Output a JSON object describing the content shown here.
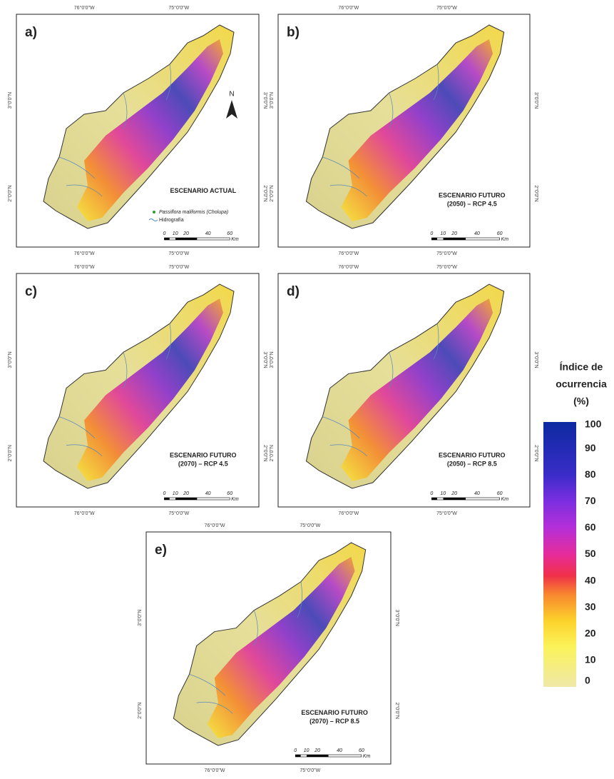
{
  "panels": [
    {
      "label": "a)",
      "scenario": [
        "ESCENARIO ACTUAL"
      ],
      "north": "N",
      "legend": [
        "Passiflora maliformis (Cholupa)",
        "Hidrografía"
      ]
    },
    {
      "label": "b)",
      "scenario": [
        "ESCENARIO FUTURO",
        "(2050) – RCP 4.5"
      ]
    },
    {
      "label": "c)",
      "scenario": [
        "ESCENARIO FUTURO",
        "(2070) – RCP 4.5"
      ]
    },
    {
      "label": "d)",
      "scenario": [
        "ESCENARIO FUTURO",
        "(2050) – RCP 8.5"
      ]
    },
    {
      "label": "e)",
      "scenario": [
        "ESCENARIO FUTURO",
        "(2070) – RCP 8.5"
      ]
    }
  ],
  "map_frame": {
    "longitudes": [
      "76°0'0\"W",
      "75°0'0\"W"
    ],
    "latitudes": [
      "3°0'0\"N",
      "2°0'0\"N"
    ],
    "scale_bar": [
      "0",
      "10",
      "20",
      "40",
      "60"
    ],
    "scale_unit": "Km"
  },
  "colorbar": {
    "title": [
      "Índice de",
      "ocurrencia",
      "(%)"
    ],
    "lim": [
      0,
      100
    ],
    "ticks": [
      0,
      10,
      20,
      30,
      40,
      50,
      60,
      70,
      80,
      90,
      100
    ]
  }
}
